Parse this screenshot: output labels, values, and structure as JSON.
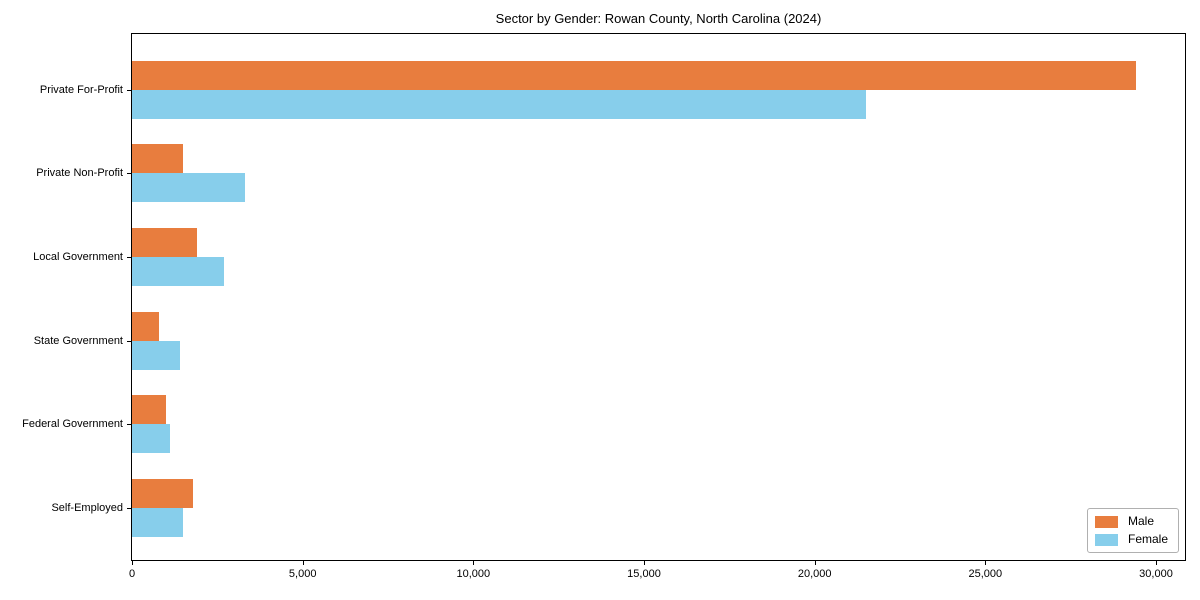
{
  "chart_data": {
    "type": "bar",
    "orientation": "horizontal",
    "title": "Sector by Gender: Rowan County, North Carolina (2024)",
    "categories": [
      "Private For-Profit",
      "Private Non-Profit",
      "Local Government",
      "State Government",
      "Federal Government",
      "Self-Employed"
    ],
    "series": [
      {
        "name": "Male",
        "color": "#e87d3e",
        "values": [
          29400,
          1500,
          1900,
          800,
          1000,
          1800
        ]
      },
      {
        "name": "Female",
        "color": "#87ceeb",
        "values": [
          21500,
          3300,
          2700,
          1400,
          1100,
          1500
        ]
      }
    ],
    "xlabel": "",
    "ylabel": "",
    "x_ticks": [
      0,
      5000,
      10000,
      15000,
      20000,
      25000,
      30000
    ],
    "x_tick_labels": [
      "0",
      "5,000",
      "10,000",
      "15,000",
      "20,000",
      "25,000",
      "30,000"
    ],
    "xlim": [
      0,
      30850
    ],
    "grid": false,
    "legend_position": "lower right",
    "axis_color": "#000000",
    "legend_border_color": "#b0b0b0"
  }
}
